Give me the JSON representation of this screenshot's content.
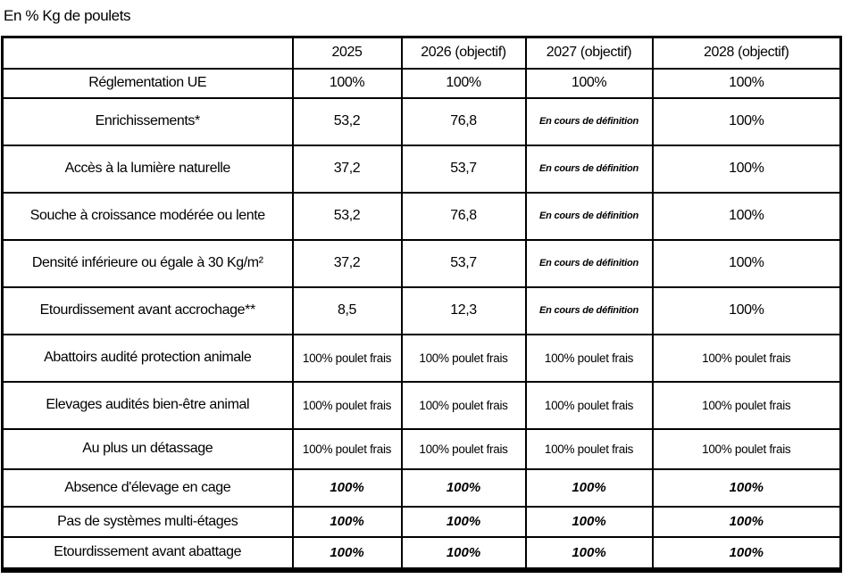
{
  "page": {
    "title": "En % Kg de poulets"
  },
  "table": {
    "header": [
      "",
      "2025",
      "2026 (objectif)",
      "2027 (objectif)",
      "2028 (objectif)"
    ],
    "rows": [
      {
        "label": "Réglementation UE",
        "values": [
          "100%",
          "100%",
          "100%",
          "100%"
        ]
      },
      {
        "label": "Enrichissements*",
        "values": [
          "53,2",
          "76,8",
          "En cours de définition",
          "100%"
        ]
      },
      {
        "label": "Accès à la lumière naturelle",
        "values": [
          "37,2",
          "53,7",
          "En cours de définition",
          "100%"
        ]
      },
      {
        "label": "Souche à croissance modérée ou lente",
        "values": [
          "53,2",
          "76,8",
          "En cours de définition",
          "100%"
        ]
      },
      {
        "label": "Densité inférieure ou égale à 30 Kg/m²",
        "values": [
          "37,2",
          "53,7",
          "En cours de définition",
          "100%"
        ]
      },
      {
        "label": "Etourdissement avant accrochage**",
        "values": [
          "8,5",
          "12,3",
          "En cours de définition",
          "100%"
        ]
      },
      {
        "label": "Abattoirs audité protection animale",
        "values": [
          "100% poulet frais",
          "100% poulet frais",
          "100% poulet frais",
          "100% poulet frais"
        ]
      },
      {
        "label": "Elevages audités bien-être animal",
        "values": [
          "100% poulet frais",
          "100% poulet frais",
          "100% poulet frais",
          "100% poulet frais"
        ]
      },
      {
        "label": "Au plus un détassage",
        "values": [
          "100% poulet frais",
          "100% poulet frais",
          "100% poulet frais",
          "100% poulet frais"
        ]
      },
      {
        "label": "Absence d'élevage en cage",
        "values": [
          "100%",
          "100%",
          "100%",
          "100%"
        ]
      },
      {
        "label": "Pas de systèmes multi-étages",
        "values": [
          "100%",
          "100%",
          "100%",
          "100%"
        ]
      },
      {
        "label": "Etourdissement avant abattage",
        "values": [
          "100%",
          "100%",
          "100%",
          "100%"
        ]
      }
    ],
    "colors": {
      "border": "#000000",
      "text": "#000000",
      "background": "#ffffff"
    }
  }
}
